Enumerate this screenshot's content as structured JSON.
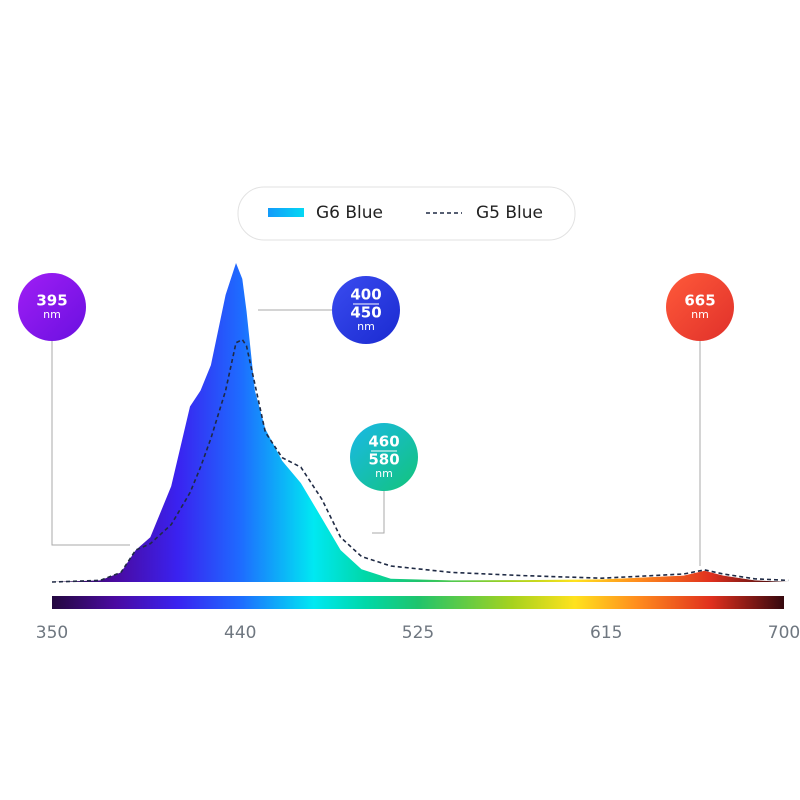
{
  "chart_data": {
    "type": "area",
    "xlim": [
      350,
      700
    ],
    "ylim": [
      0,
      100
    ],
    "xticks": [
      350,
      440,
      525,
      615,
      700
    ],
    "colorscale": [
      [
        350,
        "#24083f"
      ],
      [
        380,
        "#4a0aa0"
      ],
      [
        410,
        "#3a22f0"
      ],
      [
        440,
        "#1e6bff"
      ],
      [
        475,
        "#00e8f2"
      ],
      [
        500,
        "#00d8a8"
      ],
      [
        525,
        "#1fc46c"
      ],
      [
        570,
        "#a6d21e"
      ],
      [
        600,
        "#ffe21e"
      ],
      [
        630,
        "#ff8c1e"
      ],
      [
        665,
        "#e0301e"
      ],
      [
        700,
        "#35080e"
      ]
    ],
    "x": [
      350,
      373,
      383,
      390,
      397,
      407,
      416,
      421,
      426,
      433,
      438,
      441,
      443,
      447,
      452,
      460,
      469,
      479,
      488,
      498,
      512,
      541,
      575,
      613,
      652,
      662,
      671,
      686,
      702
    ],
    "series": [
      {
        "name": "G6 Blue",
        "values": [
          0,
          0.5,
          3,
          10,
          14,
          30,
          55,
          60,
          68,
          90,
          100,
          95,
          85,
          60,
          48,
          38,
          31,
          20,
          10,
          4,
          1,
          0.5,
          0.6,
          0.8,
          2,
          3.5,
          2,
          0.5,
          0
        ]
      },
      {
        "name": "G5 Blue",
        "color": "#1f2a44",
        "dashed": true,
        "values": [
          0,
          0.5,
          3,
          10,
          12,
          18,
          28,
          36,
          45,
          60,
          75,
          76,
          74,
          62,
          47,
          39,
          36,
          26,
          14,
          8,
          5,
          3,
          2,
          1.2,
          2.5,
          3.8,
          2.5,
          1,
          0.5
        ]
      }
    ],
    "annotations": [
      {
        "lines": [
          "395"
        ],
        "unit": "nm",
        "colors": [
          "#a01ef5",
          "#6a10e0"
        ]
      },
      {
        "lines": [
          "400",
          "450"
        ],
        "unit": "nm",
        "colors": [
          "#3a4cf0",
          "#1a2ad0"
        ]
      },
      {
        "lines": [
          "460",
          "580"
        ],
        "unit": "nm",
        "colors": [
          "#1ab8e8",
          "#12c47a"
        ]
      },
      {
        "lines": [
          "665"
        ],
        "unit": "nm",
        "colors": [
          "#ff5a3a",
          "#e0302a"
        ]
      }
    ]
  }
}
